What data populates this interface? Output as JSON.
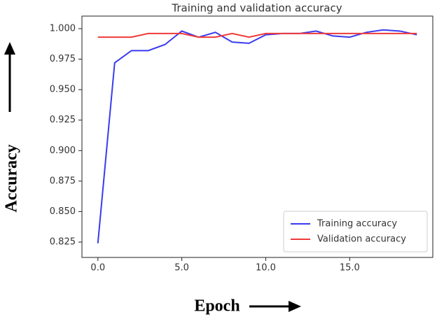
{
  "chart_data": {
    "type": "line",
    "title": "Training and validation accuracy",
    "x_label": "Epoch",
    "y_label": "Accuracy",
    "x": [
      0,
      1,
      2,
      3,
      4,
      5,
      6,
      7,
      8,
      9,
      10,
      11,
      12,
      13,
      14,
      15,
      16,
      17,
      18,
      19
    ],
    "series": [
      {
        "name": "Training accuracy",
        "color": "#3a3af0",
        "values": [
          0.824,
          0.972,
          0.982,
          0.982,
          0.987,
          0.998,
          0.993,
          0.997,
          0.989,
          0.988,
          0.995,
          0.996,
          0.996,
          0.998,
          0.994,
          0.993,
          0.997,
          0.999,
          0.998,
          0.995
        ]
      },
      {
        "name": "Validation accuracy",
        "color": "#f03a3a",
        "values": [
          0.993,
          0.993,
          0.993,
          0.996,
          0.996,
          0.996,
          0.993,
          0.993,
          0.996,
          0.993,
          0.996,
          0.996,
          0.996,
          0.996,
          0.996,
          0.996,
          0.996,
          0.996,
          0.996,
          0.996
        ]
      }
    ],
    "xlim": [
      -0.95,
      19.95
    ],
    "xticks": [
      {
        "value": 0,
        "label": "0.0"
      },
      {
        "value": 5,
        "label": "5.0"
      },
      {
        "value": 10,
        "label": "10.0"
      },
      {
        "value": 15,
        "label": "15.0"
      }
    ],
    "ylim": [
      0.8124,
      1.0103
    ],
    "yticks": [
      {
        "value": 0.825,
        "label": "0.825"
      },
      {
        "value": 0.85,
        "label": "0.850"
      },
      {
        "value": 0.875,
        "label": "0.875"
      },
      {
        "value": 0.9,
        "label": "0.900"
      },
      {
        "value": 0.925,
        "label": "0.925"
      },
      {
        "value": 0.95,
        "label": "0.950"
      },
      {
        "value": 0.975,
        "label": "0.975"
      },
      {
        "value": 1.0,
        "label": "1.000"
      }
    ],
    "legend": "lower right",
    "grid": false
  }
}
